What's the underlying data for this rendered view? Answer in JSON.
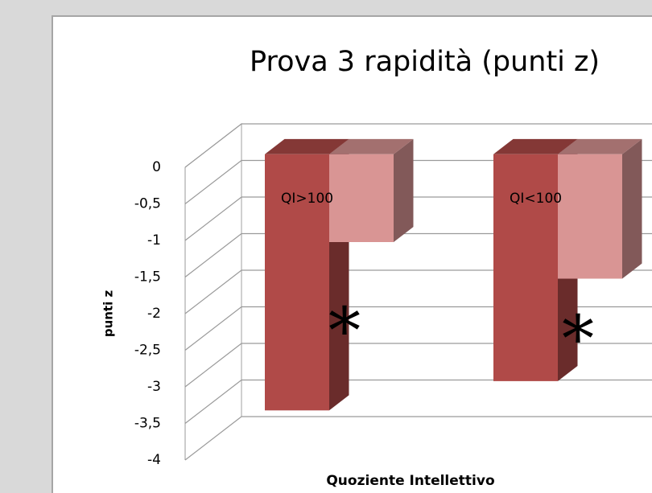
{
  "chart_data": {
    "type": "bar3d",
    "title": "Prova 3 rapidità (punti z)",
    "y_label": "punti z",
    "x_label": "Quoziente Intellettivo",
    "categories": [
      "QI>100",
      "QI<100"
    ],
    "series": [
      {
        "color": "#b04a48",
        "values": [
          -3.5,
          -3.1
        ]
      },
      {
        "color": "#d99594",
        "values": [
          -1.2,
          -1.7
        ]
      }
    ],
    "annotations": [
      "*",
      "*"
    ],
    "ylim": [
      -4,
      0
    ],
    "yticks": [
      0,
      {
        "value": -0.5,
        "label": "-0,5"
      },
      -1,
      {
        "value": -1.5,
        "label": "-1,5"
      },
      -2,
      {
        "value": -2.5,
        "label": "-2,5"
      },
      -3,
      {
        "value": -3.5,
        "label": "-3,5"
      },
      -4
    ],
    "grid": true
  }
}
